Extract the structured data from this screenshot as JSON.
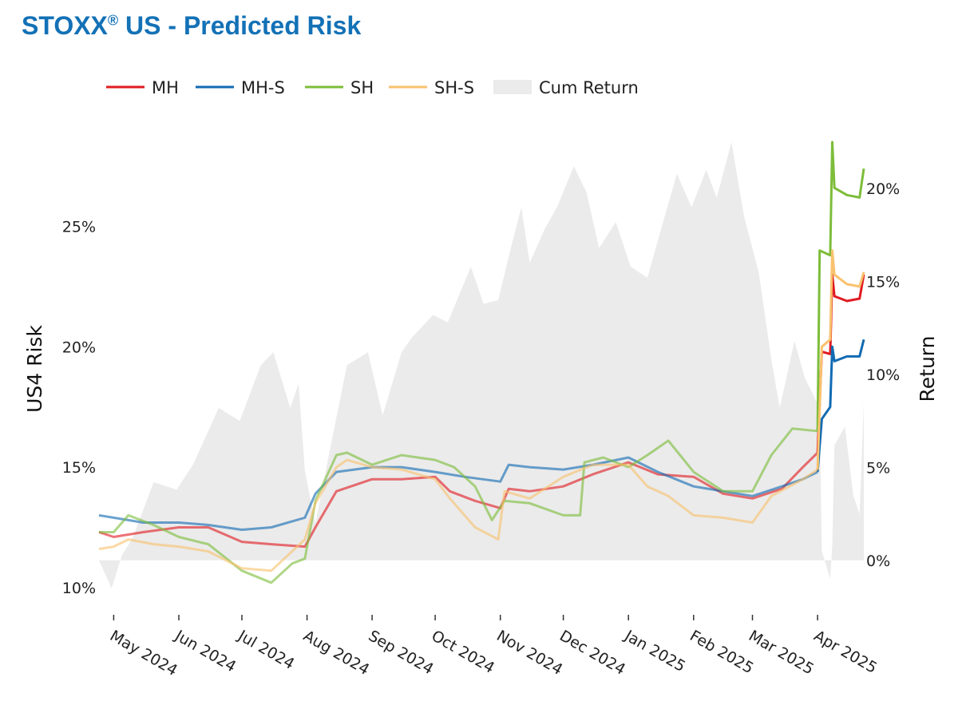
{
  "title": {
    "main": "STOXX",
    "reg": "®",
    "rest": " US - Predicted Risk"
  },
  "chart_data": {
    "type": "line",
    "ylabel_left": "US4 Risk",
    "ylabel_right": "Return",
    "legend_position": "top",
    "grid": false,
    "y_left_range": [
      0.092,
      0.285
    ],
    "y_right_range": [
      -0.025,
      0.225
    ],
    "y_left_ticks": [
      {
        "v": 0.1,
        "label": "10%"
      },
      {
        "v": 0.15,
        "label": "15%"
      },
      {
        "v": 0.2,
        "label": "20%"
      },
      {
        "v": 0.25,
        "label": "25%"
      }
    ],
    "y_right_ticks": [
      {
        "v": 0.0,
        "label": "0%"
      },
      {
        "v": 0.05,
        "label": "5%"
      },
      {
        "v": 0.1,
        "label": "10%"
      },
      {
        "v": 0.15,
        "label": "15%"
      },
      {
        "v": 0.2,
        "label": "20%"
      }
    ],
    "x_range": [
      "2024-04-24",
      "2025-04-23"
    ],
    "x_ticks": [
      {
        "date": "2024-05-01",
        "label": "May 2024"
      },
      {
        "date": "2024-06-01",
        "label": "Jun 2024"
      },
      {
        "date": "2024-07-01",
        "label": "Jul 2024"
      },
      {
        "date": "2024-08-01",
        "label": "Aug 2024"
      },
      {
        "date": "2024-09-01",
        "label": "Sep 2024"
      },
      {
        "date": "2024-10-01",
        "label": "Oct 2024"
      },
      {
        "date": "2024-11-01",
        "label": "Nov 2024"
      },
      {
        "date": "2024-12-01",
        "label": "Dec 2024"
      },
      {
        "date": "2025-01-01",
        "label": "Jan 2025"
      },
      {
        "date": "2025-02-01",
        "label": "Feb 2025"
      },
      {
        "date": "2025-03-01",
        "label": "Mar 2025"
      },
      {
        "date": "2025-04-01",
        "label": "Apr 2025"
      }
    ],
    "cum_return": {
      "name": "Cum Return",
      "color": "#ebebeb",
      "axis": "right",
      "points": [
        [
          "2024-04-24",
          0.0
        ],
        [
          "2024-04-30",
          -0.015
        ],
        [
          "2024-05-05",
          0.003
        ],
        [
          "2024-05-10",
          0.012
        ],
        [
          "2024-05-20",
          0.042
        ],
        [
          "2024-05-31",
          0.038
        ],
        [
          "2024-06-08",
          0.052
        ],
        [
          "2024-06-20",
          0.082
        ],
        [
          "2024-06-30",
          0.075
        ],
        [
          "2024-07-10",
          0.105
        ],
        [
          "2024-07-16",
          0.112
        ],
        [
          "2024-07-24",
          0.082
        ],
        [
          "2024-07-28",
          0.095
        ],
        [
          "2024-07-31",
          0.048
        ],
        [
          "2024-08-05",
          0.02
        ],
        [
          "2024-08-12",
          0.06
        ],
        [
          "2024-08-20",
          0.105
        ],
        [
          "2024-08-30",
          0.112
        ],
        [
          "2024-09-06",
          0.078
        ],
        [
          "2024-09-15",
          0.112
        ],
        [
          "2024-09-20",
          0.12
        ],
        [
          "2024-09-30",
          0.132
        ],
        [
          "2024-10-07",
          0.128
        ],
        [
          "2024-10-18",
          0.158
        ],
        [
          "2024-10-24",
          0.138
        ],
        [
          "2024-10-31",
          0.14
        ],
        [
          "2024-11-06",
          0.168
        ],
        [
          "2024-11-11",
          0.19
        ],
        [
          "2024-11-15",
          0.16
        ],
        [
          "2024-11-22",
          0.178
        ],
        [
          "2024-11-28",
          0.19
        ],
        [
          "2024-12-06",
          0.212
        ],
        [
          "2024-12-12",
          0.198
        ],
        [
          "2024-12-18",
          0.168
        ],
        [
          "2024-12-26",
          0.182
        ],
        [
          "2025-01-02",
          0.158
        ],
        [
          "2025-01-10",
          0.152
        ],
        [
          "2025-01-17",
          0.18
        ],
        [
          "2025-01-24",
          0.208
        ],
        [
          "2025-01-31",
          0.19
        ],
        [
          "2025-02-07",
          0.21
        ],
        [
          "2025-02-12",
          0.195
        ],
        [
          "2025-02-19",
          0.225
        ],
        [
          "2025-02-25",
          0.185
        ],
        [
          "2025-03-04",
          0.155
        ],
        [
          "2025-03-10",
          0.108
        ],
        [
          "2025-03-14",
          0.082
        ],
        [
          "2025-03-21",
          0.118
        ],
        [
          "2025-03-26",
          0.098
        ],
        [
          "2025-04-02",
          0.082
        ],
        [
          "2025-04-03",
          0.005
        ],
        [
          "2025-04-07",
          -0.01
        ],
        [
          "2025-04-08",
          0.008
        ],
        [
          "2025-04-09",
          0.062
        ],
        [
          "2025-04-14",
          0.072
        ],
        [
          "2025-04-18",
          0.035
        ],
        [
          "2025-04-21",
          0.025
        ],
        [
          "2025-04-23",
          0.085
        ]
      ]
    },
    "series": [
      {
        "name": "MH",
        "color": "#e01b22",
        "points": [
          [
            "2024-04-24",
            0.123
          ],
          [
            "2024-05-01",
            0.121
          ],
          [
            "2024-05-15",
            0.123
          ],
          [
            "2024-06-01",
            0.125
          ],
          [
            "2024-06-15",
            0.125
          ],
          [
            "2024-07-01",
            0.119
          ],
          [
            "2024-07-15",
            0.118
          ],
          [
            "2024-07-31",
            0.117
          ],
          [
            "2024-08-05",
            0.125
          ],
          [
            "2024-08-15",
            0.14
          ],
          [
            "2024-09-01",
            0.145
          ],
          [
            "2024-09-15",
            0.145
          ],
          [
            "2024-10-01",
            0.146
          ],
          [
            "2024-10-08",
            0.14
          ],
          [
            "2024-10-20",
            0.136
          ],
          [
            "2024-11-01",
            0.133
          ],
          [
            "2024-11-05",
            0.141
          ],
          [
            "2024-11-15",
            0.14
          ],
          [
            "2024-12-01",
            0.142
          ],
          [
            "2024-12-15",
            0.147
          ],
          [
            "2025-01-01",
            0.152
          ],
          [
            "2025-01-15",
            0.147
          ],
          [
            "2025-02-01",
            0.146
          ],
          [
            "2025-02-15",
            0.139
          ],
          [
            "2025-03-01",
            0.137
          ],
          [
            "2025-03-15",
            0.141
          ],
          [
            "2025-03-25",
            0.15
          ],
          [
            "2025-04-01",
            0.156
          ],
          [
            "2025-04-03",
            0.198
          ],
          [
            "2025-04-07",
            0.197
          ],
          [
            "2025-04-08",
            0.23
          ],
          [
            "2025-04-09",
            0.221
          ],
          [
            "2025-04-15",
            0.219
          ],
          [
            "2025-04-21",
            0.22
          ],
          [
            "2025-04-23",
            0.23
          ]
        ]
      },
      {
        "name": "MH-S",
        "color": "#116bb3",
        "points": [
          [
            "2024-04-24",
            0.13
          ],
          [
            "2024-05-01",
            0.129
          ],
          [
            "2024-05-15",
            0.127
          ],
          [
            "2024-06-01",
            0.127
          ],
          [
            "2024-06-15",
            0.126
          ],
          [
            "2024-07-01",
            0.124
          ],
          [
            "2024-07-15",
            0.125
          ],
          [
            "2024-07-31",
            0.129
          ],
          [
            "2024-08-05",
            0.139
          ],
          [
            "2024-08-15",
            0.148
          ],
          [
            "2024-09-01",
            0.15
          ],
          [
            "2024-09-15",
            0.15
          ],
          [
            "2024-10-01",
            0.148
          ],
          [
            "2024-10-15",
            0.146
          ],
          [
            "2024-11-01",
            0.144
          ],
          [
            "2024-11-05",
            0.151
          ],
          [
            "2024-11-15",
            0.15
          ],
          [
            "2024-12-01",
            0.149
          ],
          [
            "2024-12-15",
            0.151
          ],
          [
            "2025-01-01",
            0.154
          ],
          [
            "2025-01-15",
            0.148
          ],
          [
            "2025-02-01",
            0.142
          ],
          [
            "2025-02-15",
            0.14
          ],
          [
            "2025-03-01",
            0.138
          ],
          [
            "2025-03-15",
            0.142
          ],
          [
            "2025-03-25",
            0.145
          ],
          [
            "2025-04-01",
            0.148
          ],
          [
            "2025-04-03",
            0.17
          ],
          [
            "2025-04-07",
            0.175
          ],
          [
            "2025-04-08",
            0.2
          ],
          [
            "2025-04-09",
            0.194
          ],
          [
            "2025-04-15",
            0.196
          ],
          [
            "2025-04-21",
            0.196
          ],
          [
            "2025-04-23",
            0.203
          ]
        ]
      },
      {
        "name": "SH",
        "color": "#7dbd3a",
        "points": [
          [
            "2024-04-24",
            0.123
          ],
          [
            "2024-05-01",
            0.123
          ],
          [
            "2024-05-08",
            0.13
          ],
          [
            "2024-05-20",
            0.126
          ],
          [
            "2024-06-01",
            0.121
          ],
          [
            "2024-06-15",
            0.118
          ],
          [
            "2024-07-01",
            0.107
          ],
          [
            "2024-07-15",
            0.102
          ],
          [
            "2024-07-25",
            0.11
          ],
          [
            "2024-07-31",
            0.112
          ],
          [
            "2024-08-05",
            0.136
          ],
          [
            "2024-08-15",
            0.155
          ],
          [
            "2024-08-20",
            0.156
          ],
          [
            "2024-09-01",
            0.151
          ],
          [
            "2024-09-15",
            0.155
          ],
          [
            "2024-10-01",
            0.153
          ],
          [
            "2024-10-10",
            0.15
          ],
          [
            "2024-10-20",
            0.142
          ],
          [
            "2024-10-28",
            0.128
          ],
          [
            "2024-11-03",
            0.136
          ],
          [
            "2024-11-15",
            0.135
          ],
          [
            "2024-12-01",
            0.13
          ],
          [
            "2024-12-09",
            0.13
          ],
          [
            "2024-12-11",
            0.152
          ],
          [
            "2024-12-20",
            0.154
          ],
          [
            "2025-01-01",
            0.15
          ],
          [
            "2025-01-10",
            0.155
          ],
          [
            "2025-01-20",
            0.161
          ],
          [
            "2025-02-01",
            0.148
          ],
          [
            "2025-02-15",
            0.14
          ],
          [
            "2025-03-01",
            0.14
          ],
          [
            "2025-03-10",
            0.155
          ],
          [
            "2025-03-20",
            0.166
          ],
          [
            "2025-04-01",
            0.165
          ],
          [
            "2025-04-02",
            0.24
          ],
          [
            "2025-04-07",
            0.238
          ],
          [
            "2025-04-08",
            0.285
          ],
          [
            "2025-04-09",
            0.266
          ],
          [
            "2025-04-15",
            0.263
          ],
          [
            "2025-04-21",
            0.262
          ],
          [
            "2025-04-23",
            0.274
          ]
        ]
      },
      {
        "name": "SH-S",
        "color": "#f9c26e",
        "points": [
          [
            "2024-04-24",
            0.116
          ],
          [
            "2024-05-01",
            0.117
          ],
          [
            "2024-05-08",
            0.12
          ],
          [
            "2024-05-20",
            0.118
          ],
          [
            "2024-06-01",
            0.117
          ],
          [
            "2024-06-15",
            0.115
          ],
          [
            "2024-07-01",
            0.108
          ],
          [
            "2024-07-15",
            0.107
          ],
          [
            "2024-07-31",
            0.12
          ],
          [
            "2024-08-05",
            0.135
          ],
          [
            "2024-08-15",
            0.15
          ],
          [
            "2024-08-20",
            0.153
          ],
          [
            "2024-09-01",
            0.15
          ],
          [
            "2024-09-15",
            0.149
          ],
          [
            "2024-10-01",
            0.145
          ],
          [
            "2024-10-08",
            0.137
          ],
          [
            "2024-10-20",
            0.125
          ],
          [
            "2024-10-31",
            0.12
          ],
          [
            "2024-11-03",
            0.14
          ],
          [
            "2024-11-15",
            0.137
          ],
          [
            "2024-12-01",
            0.146
          ],
          [
            "2024-12-15",
            0.151
          ],
          [
            "2025-01-01",
            0.151
          ],
          [
            "2025-01-10",
            0.142
          ],
          [
            "2025-01-20",
            0.138
          ],
          [
            "2025-02-01",
            0.13
          ],
          [
            "2025-02-15",
            0.129
          ],
          [
            "2025-03-01",
            0.127
          ],
          [
            "2025-03-10",
            0.138
          ],
          [
            "2025-03-25",
            0.145
          ],
          [
            "2025-04-01",
            0.149
          ],
          [
            "2025-04-03",
            0.2
          ],
          [
            "2025-04-07",
            0.203
          ],
          [
            "2025-04-08",
            0.24
          ],
          [
            "2025-04-09",
            0.23
          ],
          [
            "2025-04-15",
            0.226
          ],
          [
            "2025-04-21",
            0.225
          ],
          [
            "2025-04-23",
            0.231
          ]
        ]
      }
    ]
  }
}
